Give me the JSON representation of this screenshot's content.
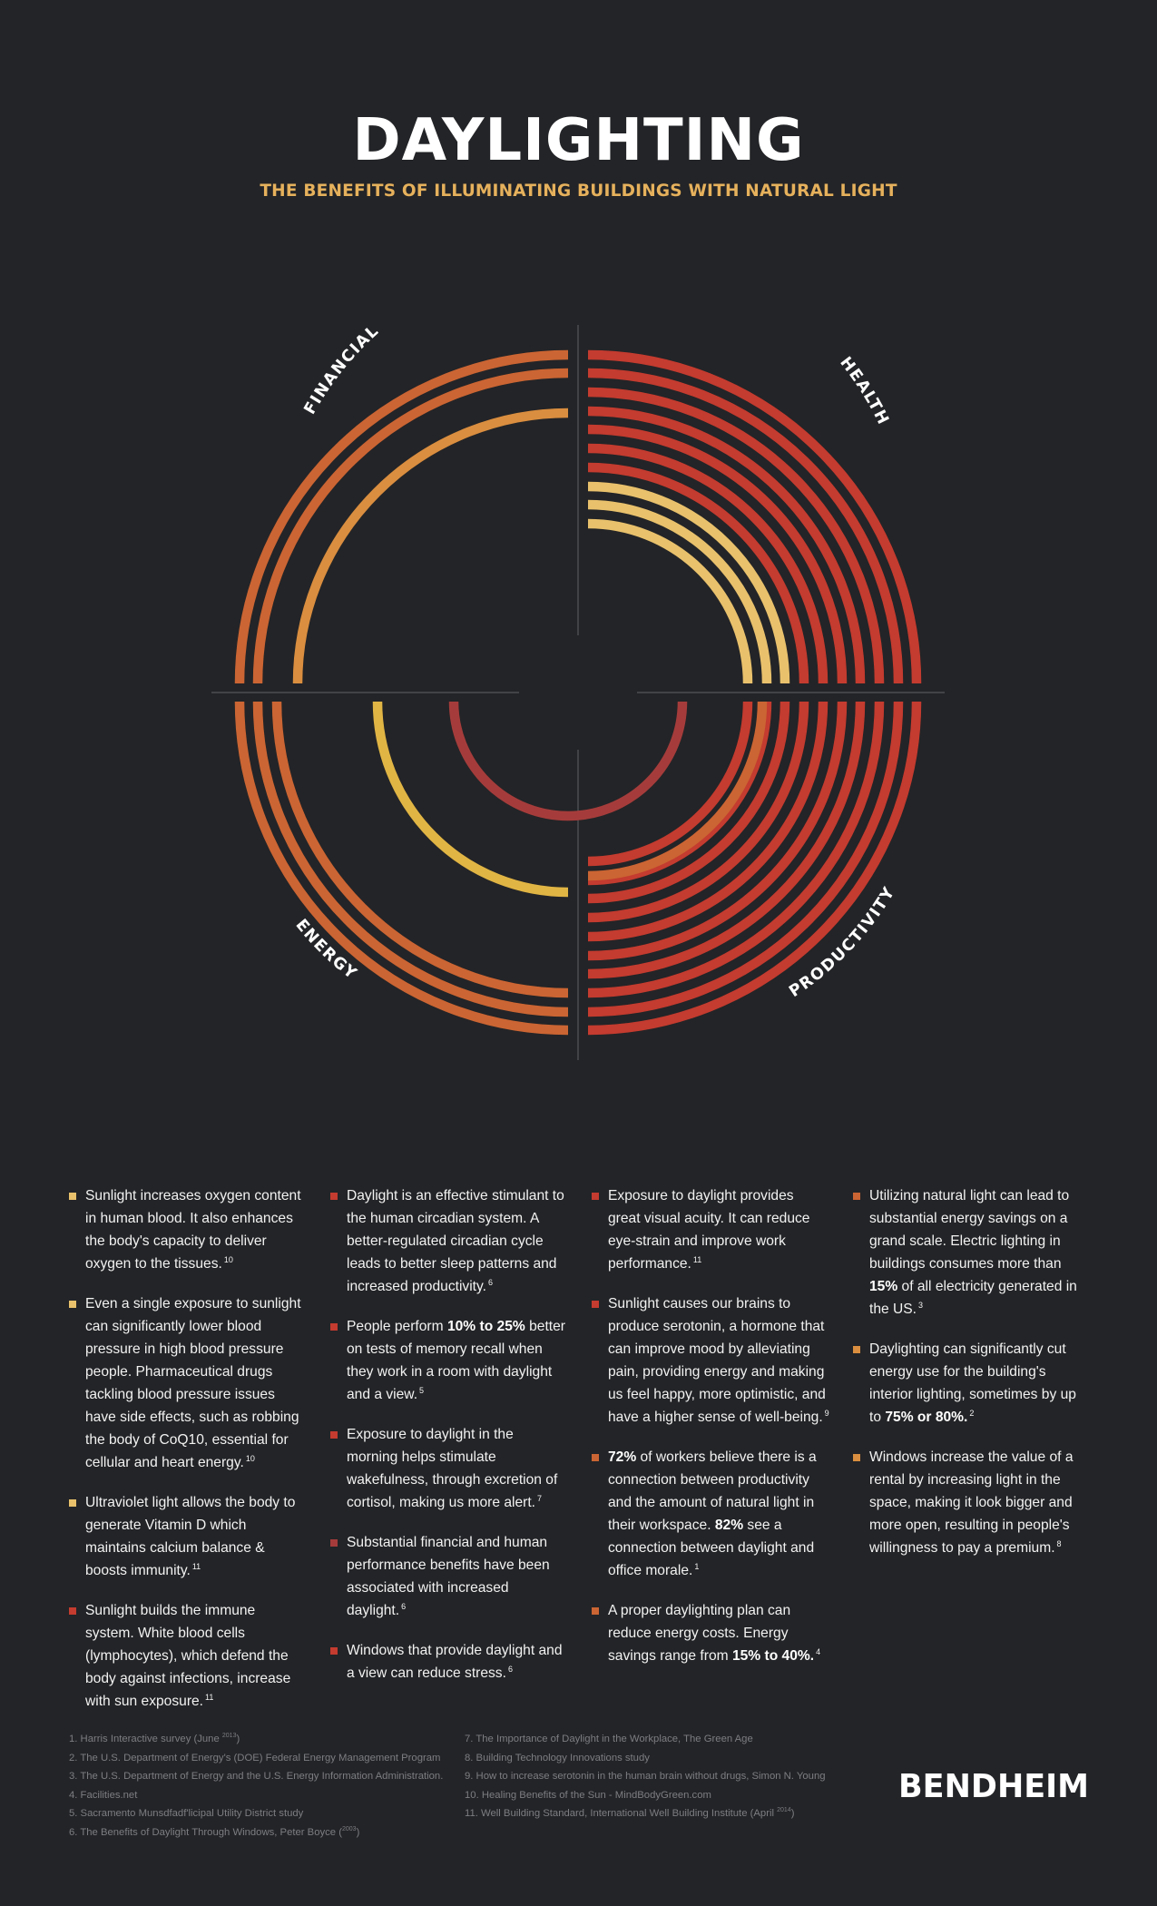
{
  "header": {
    "title": "DAYLIGHTING",
    "subtitle": "THE BENEFITS OF ILLUMINATING BUILDINGS WITH NATURAL LIGHT"
  },
  "diagram": {
    "labels": {
      "financial": "FINANCIAL",
      "health": "HEALTH",
      "energy": "ENERGY",
      "productivity": "PRODUCTIVITY"
    },
    "colors": {
      "background": "#232427",
      "red": "#c43b2f",
      "light_yellow": "#e9c16c",
      "orange": "#cb6533",
      "amber": "#da8e3f",
      "yellow": "#e1b544",
      "dark_red": "#a53c3b",
      "axis": "#55565a"
    },
    "groups": [
      {
        "name": "financial",
        "arcs": [
          "orange",
          "orange",
          "amber"
        ]
      },
      {
        "name": "health",
        "arcs": [
          "red",
          "red",
          "red",
          "red",
          "red",
          "red",
          "red",
          "light_yellow",
          "light_yellow",
          "light_yellow"
        ]
      },
      {
        "name": "energy",
        "arcs": [
          "orange",
          "orange",
          "orange",
          "yellow",
          "dark_red"
        ]
      },
      {
        "name": "productivity",
        "arcs": [
          "red",
          "red",
          "red",
          "red",
          "red",
          "red",
          "red",
          "red",
          "red",
          "red",
          "orange"
        ]
      }
    ]
  },
  "columns": [
    [
      {
        "color": "light_yellow",
        "segments": [
          {
            "text": "Sunlight increases oxygen content in human blood. It also enhances the body's capacity to deliver oxygen to the tissues."
          }
        ],
        "ref": "10"
      },
      {
        "color": "light_yellow",
        "segments": [
          {
            "text": "Even a single exposure to sunlight can significantly lower blood pressure in high blood pressure people. Pharmaceutical drugs tackling blood pressure issues have side effects, such as robbing the body of CoQ10, essential for cellular and heart energy."
          }
        ],
        "ref": "10"
      },
      {
        "color": "light_yellow",
        "segments": [
          {
            "text": "Ultraviolet light allows the body to generate Vitamin D which maintains calcium balance & boosts immunity."
          }
        ],
        "ref": "11"
      },
      {
        "color": "red",
        "segments": [
          {
            "text": "Sunlight builds the immune system. White blood cells (lymphocytes), which defend the body against infections, increase with sun exposure."
          }
        ],
        "ref": "11"
      }
    ],
    [
      {
        "color": "red",
        "segments": [
          {
            "text": "Daylight is an effective stimulant to the human circadian system. A better-regulated circadian cycle leads to better sleep patterns and increased productivity."
          }
        ],
        "ref": "6"
      },
      {
        "color": "red",
        "segments": [
          {
            "text": "People perform "
          },
          {
            "text": "10% to 25%",
            "bold": true
          },
          {
            "text": " better on tests of memory recall when they work in a room with daylight and a view."
          }
        ],
        "ref": "5"
      },
      {
        "color": "red",
        "segments": [
          {
            "text": "Exposure to daylight in the morning helps stimulate wakefulness, through excretion of cortisol, making us more alert."
          }
        ],
        "ref": "7"
      },
      {
        "color": "dark_red",
        "segments": [
          {
            "text": "Substantial financial and human performance benefits have been associated with increased daylight."
          }
        ],
        "ref": "6"
      },
      {
        "color": "red",
        "segments": [
          {
            "text": "Windows that provide daylight and a view can reduce stress."
          }
        ],
        "ref": "6"
      }
    ],
    [
      {
        "color": "red",
        "segments": [
          {
            "text": "Exposure to daylight provides great visual acuity. It can reduce eye-strain and improve work performance."
          }
        ],
        "ref": "11"
      },
      {
        "color": "red",
        "segments": [
          {
            "text": "Sunlight causes our brains to produce serotonin, a hormone that can improve mood by alleviating pain, providing energy and making us feel happy, more optimistic, and have a higher sense of well-being."
          }
        ],
        "ref": "9"
      },
      {
        "color": "orange",
        "segments": [
          {
            "text": "72%",
            "bold": true
          },
          {
            "text": " of workers believe there is a connection between productivity and the amount of natural light in their workspace. "
          },
          {
            "text": "82%",
            "bold": true
          },
          {
            "text": " see a connection between daylight and office morale."
          }
        ],
        "ref": "1"
      },
      {
        "color": "orange",
        "segments": [
          {
            "text": "A proper daylighting plan can reduce energy costs. Energy savings range from "
          },
          {
            "text": "15% to 40%.",
            "bold": true
          }
        ],
        "ref": "4"
      }
    ],
    [
      {
        "color": "orange",
        "segments": [
          {
            "text": "Utilizing natural light can lead to substantial energy savings on a grand scale. Electric lighting in buildings consumes more than "
          },
          {
            "text": "15%",
            "bold": true
          },
          {
            "text": " of all electricity generated in the US."
          }
        ],
        "ref": "3"
      },
      {
        "color": "amber",
        "segments": [
          {
            "text": "Daylighting can significantly cut energy use for the building's interior lighting, sometimes by up to "
          },
          {
            "text": "75% or 80%.",
            "bold": true
          }
        ],
        "ref": "2"
      },
      {
        "color": "amber",
        "segments": [
          {
            "text": "Windows increase the value of a rental by increasing light in the space, making it look bigger and more open, resulting in people's willingness to pay a premium."
          }
        ],
        "ref": "8"
      }
    ]
  ],
  "footnotes": {
    "left": [
      {
        "text": "1. Harris Interactive survey (June ",
        "sup": "2013",
        "after": ")"
      },
      {
        "text": "2. The U.S. Department of Energy's (DOE) Federal Energy Management Program"
      },
      {
        "text": "3. The U.S. Department of Energy and the U.S. Energy Information Administration."
      },
      {
        "text": "4. Facilities.net"
      },
      {
        "text": "5. Sacramento Munsdfadf'licipal Utility District study"
      },
      {
        "text": "6. The Benefits of Daylight Through Windows, Peter Boyce (",
        "sup": "2003",
        "after": ")"
      }
    ],
    "right": [
      {
        "text": "7. The Importance of Daylight in the Workplace, The Green Age"
      },
      {
        "text": "8. Building Technology Innovations study"
      },
      {
        "text": "9. How to increase serotonin in the human brain without drugs, Simon N. Young"
      },
      {
        "text": "10. Healing Benefits of the Sun - MindBodyGreen.com"
      },
      {
        "text": "11. Well Building Standard, International Well Building Institute (April ",
        "sup": "2014",
        "after": ")"
      }
    ]
  },
  "brand": {
    "logo_text": "BENDHEIM",
    "color": "#ffffff"
  }
}
